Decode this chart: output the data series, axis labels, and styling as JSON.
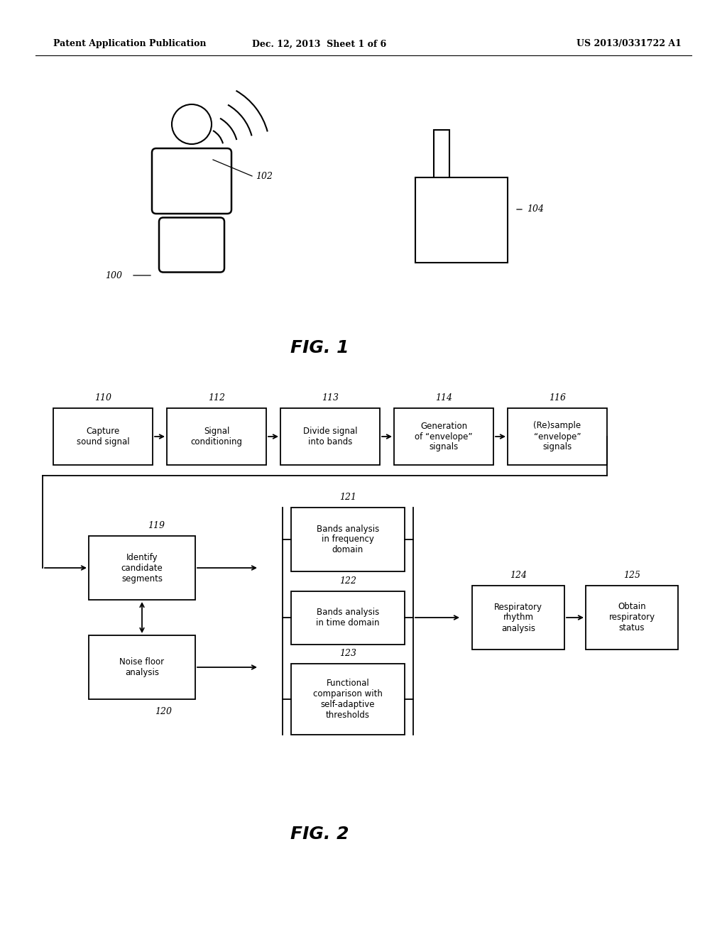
{
  "header_left": "Patent Application Publication",
  "header_mid": "Dec. 12, 2013  Sheet 1 of 6",
  "header_right": "US 2013/0331722 A1",
  "fig1_label": "FIG. 1",
  "fig2_label": "FIG. 2",
  "bg_color": "#ffffff",
  "line_color": "#000000",
  "text_color": "#000000"
}
